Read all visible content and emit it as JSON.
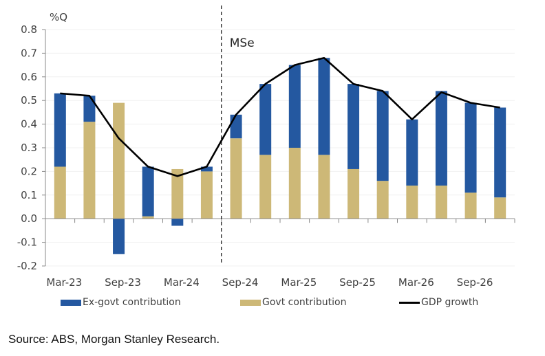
{
  "chart_data": {
    "type": "bar",
    "stacked": true,
    "title": "",
    "ylabel": "%Q",
    "xlabel": "",
    "ylim": [
      -0.2,
      0.8
    ],
    "yticks": [
      -0.2,
      -0.1,
      0.0,
      0.1,
      0.2,
      0.3,
      0.4,
      0.5,
      0.6,
      0.7,
      0.8
    ],
    "ytick_labels": [
      "-0.2",
      "-0.1",
      "0.0",
      "0.1",
      "0.2",
      "0.3",
      "0.4",
      "0.5",
      "0.6",
      "0.7",
      "0.8"
    ],
    "categories": [
      "Mar-23",
      "Jun-23",
      "Sep-23",
      "Dec-23",
      "Mar-24",
      "Jun-24",
      "Sep-24",
      "Dec-24",
      "Mar-25",
      "Jun-25",
      "Sep-25",
      "Dec-25",
      "Mar-26",
      "Jun-26",
      "Sep-26",
      "Dec-26"
    ],
    "xtick_labels": [
      "Mar-23",
      "Sep-23",
      "Mar-24",
      "Sep-24",
      "Mar-25",
      "Sep-25",
      "Mar-26",
      "Sep-26"
    ],
    "grid": true,
    "series": [
      {
        "name": "Ex-govt contribution",
        "type": "bar",
        "color": "#2458a0",
        "values": [
          0.31,
          0.11,
          -0.15,
          0.21,
          -0.03,
          0.02,
          0.1,
          0.3,
          0.35,
          0.41,
          0.36,
          0.38,
          0.28,
          0.4,
          0.38,
          0.38
        ]
      },
      {
        "name": "Govt contribution",
        "type": "bar",
        "color": "#cdb877",
        "values": [
          0.22,
          0.41,
          0.49,
          0.01,
          0.21,
          0.2,
          0.34,
          0.27,
          0.3,
          0.27,
          0.21,
          0.16,
          0.14,
          0.14,
          0.11,
          0.09
        ]
      },
      {
        "name": "GDP growth",
        "type": "line",
        "color": "#000000",
        "values": [
          0.53,
          0.52,
          0.34,
          0.22,
          0.18,
          0.22,
          0.44,
          0.57,
          0.65,
          0.68,
          0.57,
          0.54,
          0.42,
          0.535,
          0.49,
          0.47
        ]
      }
    ],
    "annotations": [
      {
        "text": "MSe",
        "type": "vertical-dashed-divider",
        "between": [
          "Jun-24",
          "Sep-24"
        ]
      }
    ],
    "legend": "bottom"
  },
  "source": "Source: ABS, Morgan Stanley Research."
}
